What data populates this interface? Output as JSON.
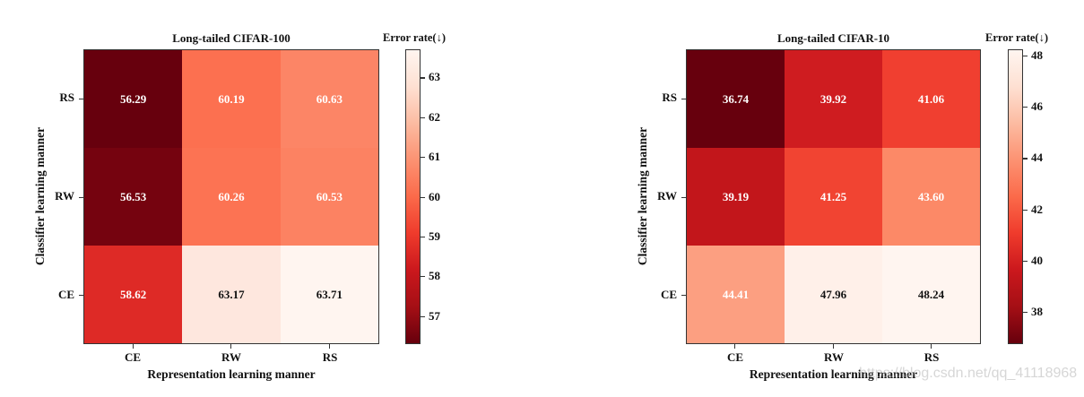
{
  "chart_data": [
    {
      "type": "heatmap",
      "title": "Long-tailed CIFAR-100",
      "xlabel": "Representation learning manner",
      "ylabel": "Classifier learning manner",
      "x_categories": [
        "CE",
        "RW",
        "RS"
      ],
      "y_categories": [
        "RS",
        "RW",
        "CE"
      ],
      "values": [
        [
          56.29,
          60.19,
          60.63
        ],
        [
          56.53,
          60.26,
          60.53
        ],
        [
          58.62,
          63.17,
          63.71
        ]
      ],
      "colorbar": {
        "label": "Error rate(↓)",
        "ticks": [
          63,
          62,
          61,
          60,
          59,
          58,
          57
        ],
        "range": [
          56.29,
          63.71
        ],
        "colormap": "Reds_r"
      }
    },
    {
      "type": "heatmap",
      "title": "Long-tailed CIFAR-10",
      "xlabel": "Representation learning manner",
      "ylabel": "Classifier learning manner",
      "x_categories": [
        "CE",
        "RW",
        "RS"
      ],
      "y_categories": [
        "RS",
        "RW",
        "CE"
      ],
      "values": [
        [
          36.74,
          39.92,
          41.06
        ],
        [
          39.19,
          41.25,
          43.6
        ],
        [
          44.41,
          47.96,
          48.24
        ]
      ],
      "colorbar": {
        "label": "Error rate(↓)",
        "ticks": [
          48,
          46,
          44,
          42,
          40,
          38
        ],
        "range": [
          36.74,
          48.24
        ],
        "colormap": "Reds_r"
      }
    }
  ],
  "left": {
    "title": "Long-tailed CIFAR-100",
    "xlabel": "Representation learning manner",
    "ylabel": "Classifier learning manner",
    "cbar_label": "Error rate(↓)",
    "x_ticks": [
      "CE",
      "RW",
      "RS"
    ],
    "y_ticks": [
      "RS",
      "RW",
      "CE"
    ],
    "cells": [
      "56.29",
      "60.19",
      "60.63",
      "56.53",
      "60.26",
      "60.53",
      "58.62",
      "63.17",
      "63.71"
    ],
    "cell_colors": [
      "#67000d",
      "#fc7050",
      "#fc8566",
      "#75030f",
      "#fc7353",
      "#fc8262",
      "#de2a26",
      "#fee7de",
      "#fff5f0"
    ],
    "cell_text_colors": [
      "#ffffff",
      "#ffffff",
      "#ffffff",
      "#ffffff",
      "#ffffff",
      "#ffffff",
      "#ffffff",
      "#111111",
      "#111111"
    ],
    "cbar_ticks": [
      "63",
      "62",
      "61",
      "60",
      "59",
      "58",
      "57"
    ]
  },
  "right": {
    "title": "Long-tailed CIFAR-10",
    "xlabel": "Representation learning manner",
    "ylabel": "Classifier learning manner",
    "cbar_label": "Error rate(↓)",
    "x_ticks": [
      "CE",
      "RW",
      "RS"
    ],
    "y_ticks": [
      "RS",
      "RW",
      "CE"
    ],
    "cells": [
      "36.74",
      "39.92",
      "41.06",
      "39.19",
      "41.25",
      "43.60",
      "44.41",
      "47.96",
      "48.24"
    ],
    "cell_colors": [
      "#67000d",
      "#cf1c20",
      "#f03f30",
      "#c2161b",
      "#f14432",
      "#fc8967",
      "#fc9f81",
      "#fff0e9",
      "#fff5f0"
    ],
    "cell_text_colors": [
      "#ffffff",
      "#ffffff",
      "#ffffff",
      "#ffffff",
      "#ffffff",
      "#ffffff",
      "#ffffff",
      "#111111",
      "#111111"
    ],
    "cbar_ticks": [
      "48",
      "46",
      "44",
      "42",
      "40",
      "38"
    ]
  },
  "watermark": "https://blog.csdn.net/qq_41118968"
}
